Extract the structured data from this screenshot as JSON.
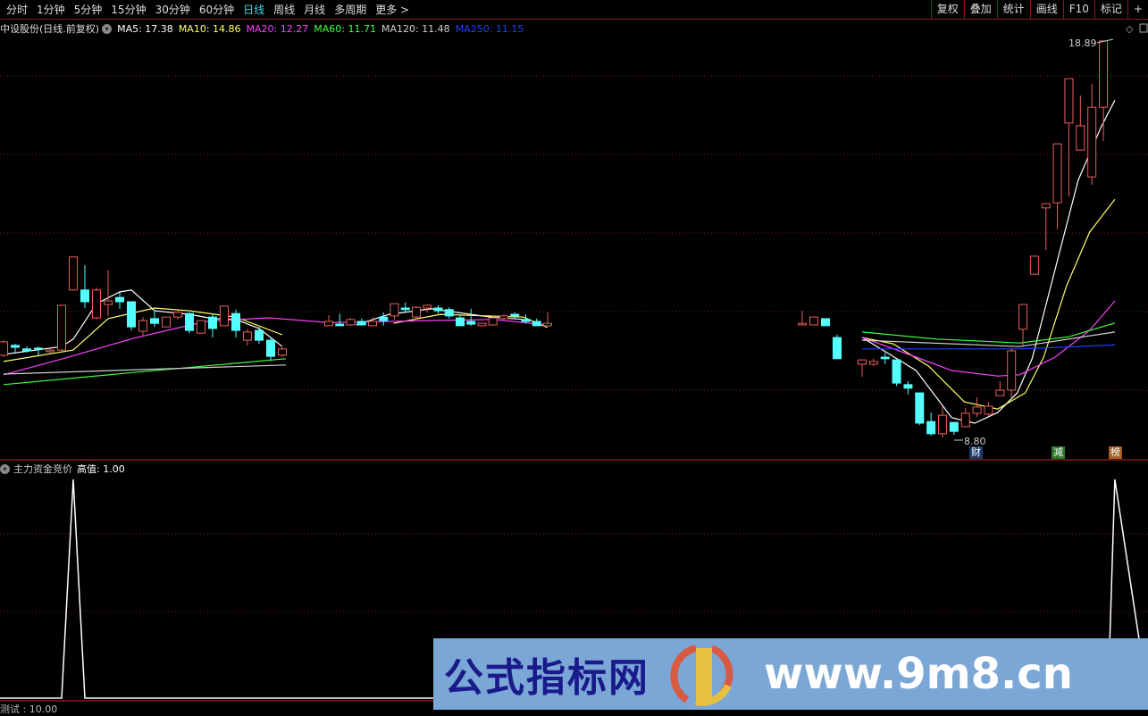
{
  "toolbar": {
    "periods": [
      "分时",
      "1分钟",
      "5分钟",
      "15分钟",
      "30分钟",
      "60分钟",
      "日线",
      "周线",
      "月线",
      "多周期",
      "更多 >"
    ],
    "active_period": "日线",
    "buttons": [
      "复权",
      "叠加",
      "统计",
      "画线",
      "F10",
      "标记",
      "+"
    ]
  },
  "legend": {
    "title": "中设股份(日线.前复权)",
    "ma": [
      {
        "label": "MA5: 17.38",
        "color": "#ffffff"
      },
      {
        "label": "MA10: 14.86",
        "color": "#ffff66"
      },
      {
        "label": "MA20: 12.27",
        "color": "#ff40ff"
      },
      {
        "label": "MA60: 11.71",
        "color": "#40ff40"
      },
      {
        "label": "MA120: 11.48",
        "color": "#d0d0d0"
      },
      {
        "label": "MA250: 11.15",
        "color": "#2040ff"
      }
    ]
  },
  "annotations": {
    "high": "18.89",
    "low": "8.80"
  },
  "tags": [
    {
      "text": "财",
      "bg": "#1a3a66",
      "color": "#fff"
    },
    {
      "text": "减",
      "bg": "#2a7a2a",
      "color": "#fff"
    },
    {
      "text": "榜",
      "bg": "#a0602a",
      "color": "#fff"
    }
  ],
  "indicator": {
    "name": "主力资金竞价",
    "value_label": "高值: 1.00"
  },
  "bottom_label": "测试 : 10.00",
  "watermark": {
    "cn": "公式指标网",
    "url": "www.9m8.cn"
  },
  "colors": {
    "up": "#e8605a",
    "down": "#54ffff",
    "grid": "#8b1a1a",
    "bg": "#000000"
  },
  "chart_data": [
    {
      "type": "candlestick",
      "ylim": [
        8.6,
        19.0
      ],
      "candles": [
        [
          10.89,
          11.27,
          10.84,
          11.23
        ],
        [
          11.14,
          11.18,
          10.93,
          11.09
        ],
        [
          11.05,
          11.11,
          10.95,
          11.0
        ],
        [
          11.07,
          11.11,
          10.89,
          11.05
        ],
        [
          10.98,
          11.05,
          10.95,
          11.02
        ],
        [
          11.02,
          12.16,
          10.98,
          12.16
        ],
        [
          12.55,
          13.39,
          12.55,
          13.39
        ],
        [
          12.55,
          13.18,
          12.09,
          12.25
        ],
        [
          11.84,
          12.61,
          11.8,
          12.55
        ],
        [
          12.18,
          13.05,
          11.89,
          12.27
        ],
        [
          12.36,
          12.52,
          12.07,
          12.25
        ],
        [
          12.25,
          12.25,
          11.52,
          11.61
        ],
        [
          11.5,
          11.86,
          11.39,
          11.77
        ],
        [
          11.82,
          12.05,
          11.61,
          11.7
        ],
        [
          11.61,
          11.86,
          11.61,
          11.86
        ],
        [
          11.86,
          12.02,
          11.8,
          11.98
        ],
        [
          11.95,
          11.98,
          11.45,
          11.52
        ],
        [
          11.45,
          11.77,
          11.45,
          11.77
        ],
        [
          11.86,
          11.93,
          11.34,
          11.57
        ],
        [
          11.64,
          12.14,
          11.64,
          12.14
        ],
        [
          11.95,
          12.05,
          11.34,
          11.52
        ],
        [
          11.27,
          11.55,
          11.14,
          11.48
        ],
        [
          11.52,
          11.61,
          11.18,
          11.27
        ],
        [
          11.27,
          11.36,
          10.75,
          10.86
        ],
        [
          10.89,
          11.09,
          10.84,
          11.05
        ],
        [
          11.64,
          11.91,
          11.64,
          11.75
        ],
        [
          11.68,
          11.95,
          11.64,
          11.64
        ],
        [
          11.66,
          11.84,
          11.64,
          11.8
        ],
        [
          11.75,
          11.82,
          11.64,
          11.66
        ],
        [
          11.64,
          11.86,
          11.64,
          11.75
        ],
        [
          11.86,
          11.98,
          11.64,
          11.77
        ],
        [
          11.89,
          12.2,
          11.8,
          12.2
        ],
        [
          12.09,
          12.23,
          11.98,
          12.05
        ],
        [
          11.86,
          12.14,
          11.8,
          12.11
        ],
        [
          12.09,
          12.18,
          11.98,
          12.16
        ],
        [
          12.09,
          12.16,
          11.95,
          12.02
        ],
        [
          12.05,
          12.11,
          11.82,
          11.89
        ],
        [
          11.84,
          11.93,
          11.64,
          11.64
        ],
        [
          11.75,
          12.07,
          11.64,
          11.68
        ],
        [
          11.64,
          11.7,
          11.64,
          11.7
        ],
        [
          11.66,
          11.84,
          11.66,
          11.84
        ],
        [
          11.82,
          11.93,
          11.77,
          11.89
        ],
        [
          11.93,
          11.98,
          11.82,
          11.89
        ],
        [
          11.8,
          11.93,
          11.7,
          11.75
        ],
        [
          11.75,
          11.82,
          11.64,
          11.64
        ],
        [
          11.64,
          11.98,
          11.64,
          11.7
        ],
        [
          11.66,
          12.02,
          11.64,
          11.7
        ],
        [
          11.66,
          11.86,
          11.66,
          11.86
        ],
        [
          11.82,
          11.82,
          11.64,
          11.64
        ],
        [
          11.34,
          11.41,
          10.8,
          10.8
        ],
        [
          10.66,
          10.77,
          10.34,
          10.77
        ],
        [
          10.66,
          10.8,
          10.61,
          10.73
        ],
        [
          10.84,
          10.95,
          10.66,
          10.8
        ],
        [
          10.77,
          10.77,
          10.11,
          10.18
        ],
        [
          10.14,
          10.23,
          9.89,
          10.05
        ],
        [
          9.93,
          9.93,
          9.11,
          9.16
        ],
        [
          9.2,
          9.43,
          8.84,
          8.89
        ],
        [
          8.89,
          9.59,
          8.8,
          9.36
        ],
        [
          9.18,
          9.18,
          8.86,
          8.95
        ],
        [
          9.07,
          9.55,
          9.07,
          9.41
        ],
        [
          9.41,
          9.82,
          9.32,
          9.57
        ],
        [
          9.39,
          9.7,
          9.34,
          9.59
        ],
        [
          9.86,
          10.23,
          9.86,
          10.0
        ],
        [
          10.0,
          11.07,
          9.82,
          11.0
        ],
        [
          11.55,
          12.18,
          11.14,
          12.18
        ],
        [
          12.95,
          13.41,
          12.95,
          13.41
        ],
        [
          14.64,
          14.75,
          13.57,
          14.75
        ],
        [
          14.77,
          16.27,
          14.09,
          16.27
        ],
        [
          16.8,
          17.93,
          14.93,
          17.93
        ],
        [
          16.11,
          17.5,
          16.11,
          16.73
        ],
        [
          15.43,
          17.8,
          15.23,
          17.2
        ],
        [
          17.2,
          18.89,
          16.34,
          18.89
        ]
      ],
      "ma_series": [
        {
          "name": "MA5",
          "color": "#ffffff",
          "segments": [
            [
              [
                0,
                10.91
              ],
              [
                5,
                11.11
              ],
              [
                6,
                11.3
              ],
              [
                8,
                12.2
              ],
              [
                10,
                12.5
              ],
              [
                11,
                12.55
              ],
              [
                13,
                12.02
              ],
              [
                16,
                11.93
              ],
              [
                18,
                11.82
              ],
              [
                20,
                11.8
              ],
              [
                22,
                11.57
              ],
              [
                24,
                11.11
              ]
            ],
            [
              [
                27.5,
                11.66
              ],
              [
                30.5,
                11.93
              ],
              [
                34.4,
                12.07
              ],
              [
                36.7,
                11.98
              ],
              [
                39.8,
                11.86
              ],
              [
                42.8,
                11.8
              ]
            ],
            [
              [
                50,
                11.34
              ],
              [
                54.7,
                10.5
              ],
              [
                57.8,
                9.3
              ],
              [
                59.8,
                9.16
              ],
              [
                61.8,
                9.43
              ],
              [
                63.5,
                9.93
              ],
              [
                64.8,
                10.8
              ],
              [
                66.8,
                13.07
              ],
              [
                68.8,
                15.34
              ],
              [
                70.8,
                16.7
              ],
              [
                72,
                17.38
              ]
            ]
          ]
        },
        {
          "name": "MA10",
          "color": "#ffff66",
          "segments": [
            [
              [
                0,
                10.73
              ],
              [
                6,
                11.02
              ],
              [
                9,
                11.82
              ],
              [
                13,
                12.09
              ],
              [
                16,
                12.02
              ],
              [
                20,
                11.86
              ],
              [
                24,
                11.41
              ]
            ],
            [
              [
                30.9,
                11.7
              ],
              [
                35.2,
                11.93
              ],
              [
                42.8,
                11.86
              ],
              [
                45,
                11.59
              ]
            ],
            [
              [
                50,
                11.34
              ],
              [
                52.7,
                11.18
              ],
              [
                55.8,
                10.61
              ],
              [
                58.9,
                9.7
              ],
              [
                61.8,
                9.52
              ],
              [
                64.2,
                9.93
              ],
              [
                65.8,
                10.84
              ],
              [
                67.8,
                12.66
              ],
              [
                69.8,
                14.02
              ],
              [
                72,
                14.86
              ]
            ]
          ]
        },
        {
          "name": "MA20",
          "color": "#ff40ff",
          "segments": [
            [
              [
                0,
                10.39
              ],
              [
                5.1,
                10.8
              ],
              [
                11.2,
                11.32
              ],
              [
                17.4,
                11.75
              ],
              [
                22.8,
                11.84
              ],
              [
                25,
                11.72
              ]
            ],
            [
              [
                25,
                11.72
              ],
              [
                40,
                11.8
              ],
              [
                45,
                11.66
              ]
            ],
            [
              [
                50,
                11.34
              ],
              [
                54.7,
                10.84
              ],
              [
                57.8,
                10.5
              ],
              [
                61.8,
                10.36
              ],
              [
                63.7,
                10.39
              ],
              [
                66.8,
                10.84
              ],
              [
                69.8,
                11.52
              ],
              [
                72,
                12.27
              ]
            ]
          ]
        },
        {
          "name": "MA60",
          "color": "#40ff40",
          "segments": [
            [
              [
                0,
                10.14
              ],
              [
                11.2,
                10.45
              ],
              [
                24.3,
                10.8
              ]
            ],
            [
              [
                50,
                11.48
              ],
              [
                56.5,
                11.3
              ],
              [
                63.7,
                11.2
              ],
              [
                68,
                11.36
              ],
              [
                72,
                11.71
              ]
            ]
          ]
        },
        {
          "name": "MA120",
          "color": "#d0d0d0",
          "segments": [
            [
              [
                0,
                10.41
              ],
              [
                24.3,
                10.64
              ]
            ],
            [
              [
                50,
                11.27
              ],
              [
                63.7,
                11.11
              ],
              [
                72,
                11.48
              ]
            ]
          ]
        },
        {
          "name": "MA250",
          "color": "#2040ff",
          "segments": [
            [
              [
                50,
                11.05
              ],
              [
                63.7,
                11.05
              ],
              [
                72,
                11.15
              ]
            ]
          ]
        }
      ]
    },
    {
      "type": "line",
      "ylim": [
        0,
        1
      ],
      "series": [
        {
          "points": [
            [
              -1,
              0
            ],
            [
              5,
              0
            ],
            [
              6,
              1
            ],
            [
              7,
              0
            ],
            [
              71.4,
              0
            ],
            [
              72,
              1
            ]
          ]
        }
      ]
    }
  ]
}
